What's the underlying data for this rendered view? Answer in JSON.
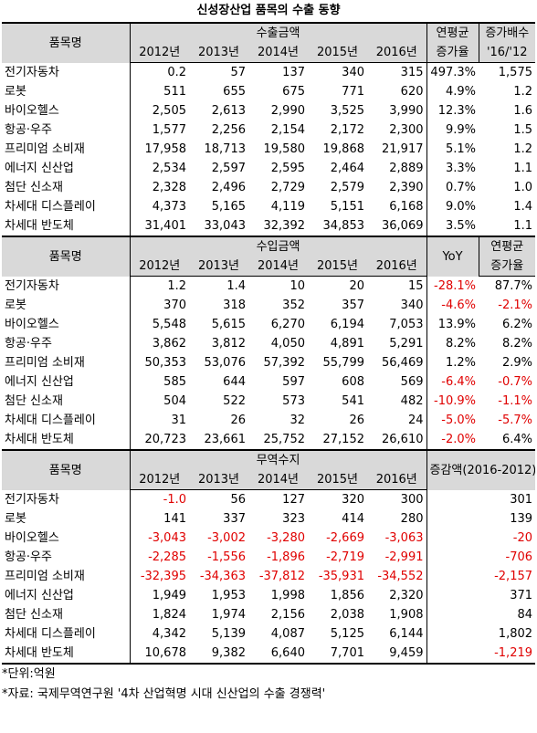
{
  "title": "신성장산업 품목의 수출 동향",
  "tables": [
    {
      "header": {
        "item": "품목명",
        "group": "수출금액",
        "years": [
          "2012년",
          "2013년",
          "2014년",
          "2015년",
          "2016년"
        ],
        "extra": [
          {
            "top": "연평균",
            "bottom": "증가율"
          },
          {
            "top": "증가배수",
            "bottom": "'16/'12"
          }
        ]
      },
      "rows": [
        [
          "전기자동차",
          "0.2",
          "57",
          "137",
          "340",
          "315",
          "497.3%",
          "1,575"
        ],
        [
          "로봇",
          "511",
          "655",
          "675",
          "771",
          "620",
          "4.9%",
          "1.2"
        ],
        [
          "바이오헬스",
          "2,505",
          "2,613",
          "2,990",
          "3,525",
          "3,990",
          "12.3%",
          "1.6"
        ],
        [
          "항공·우주",
          "1,577",
          "2,256",
          "2,154",
          "2,172",
          "2,300",
          "9.9%",
          "1.5"
        ],
        [
          "프리미엄 소비재",
          "17,958",
          "18,713",
          "19,580",
          "19,868",
          "21,917",
          "5.1%",
          "1.2"
        ],
        [
          "에너지 신산업",
          "2,534",
          "2,597",
          "2,595",
          "2,464",
          "2,889",
          "3.3%",
          "1.1"
        ],
        [
          "첨단 신소재",
          "2,328",
          "2,496",
          "2,729",
          "2,579",
          "2,390",
          "0.7%",
          "1.0"
        ],
        [
          "차세대 디스플레이",
          "4,373",
          "5,165",
          "4,119",
          "5,151",
          "6,168",
          "9.0%",
          "1.4"
        ],
        [
          "차세대 반도체",
          "31,401",
          "33,043",
          "32,392",
          "34,853",
          "36,069",
          "3.5%",
          "1.1"
        ]
      ]
    },
    {
      "header": {
        "item": "품목명",
        "group": "수입금액",
        "years": [
          "2012년",
          "2013년",
          "2014년",
          "2015년",
          "2016년"
        ],
        "extra": [
          "YoY",
          {
            "top": "연평균",
            "bottom": "증가율"
          }
        ]
      },
      "rows": [
        [
          "전기자동차",
          "1.2",
          "1.4",
          "10",
          "20",
          "15",
          "-28.1%",
          "87.7%"
        ],
        [
          "로봇",
          "370",
          "318",
          "352",
          "357",
          "340",
          "-4.6%",
          "-2.1%"
        ],
        [
          "바이오헬스",
          "5,548",
          "5,615",
          "6,270",
          "6,194",
          "7,053",
          "13.9%",
          "6.2%"
        ],
        [
          "항공·우주",
          "3,862",
          "3,812",
          "4,050",
          "4,891",
          "5,291",
          "8.2%",
          "8.2%"
        ],
        [
          "프리미엄 소비재",
          "50,353",
          "53,076",
          "57,392",
          "55,799",
          "56,469",
          "1.2%",
          "2.9%"
        ],
        [
          "에너지 신산업",
          "585",
          "644",
          "597",
          "608",
          "569",
          "-6.4%",
          "-0.7%"
        ],
        [
          "첨단 신소재",
          "504",
          "522",
          "573",
          "541",
          "482",
          "-10.9%",
          "-1.1%"
        ],
        [
          "차세대 디스플레이",
          "31",
          "26",
          "32",
          "26",
          "24",
          "-5.0%",
          "-5.7%"
        ],
        [
          "차세대 반도체",
          "20,723",
          "23,661",
          "25,752",
          "27,152",
          "26,610",
          "-2.0%",
          "6.4%"
        ]
      ]
    },
    {
      "header": {
        "item": "품목명",
        "group": "무역수지",
        "years": [
          "2012년",
          "2013년",
          "2014년",
          "2015년",
          "2016년"
        ],
        "extra": [
          "증감액(2016-2012)"
        ]
      },
      "rows": [
        [
          "전기자동차",
          "-1.0",
          "56",
          "127",
          "320",
          "300",
          "301"
        ],
        [
          "로봇",
          "141",
          "337",
          "323",
          "414",
          "280",
          "139"
        ],
        [
          "바이오헬스",
          "-3,043",
          "-3,002",
          "-3,280",
          "-2,669",
          "-3,063",
          "-20"
        ],
        [
          "항공·우주",
          "-2,285",
          "-1,556",
          "-1,896",
          "-2,719",
          "-2,991",
          "-706"
        ],
        [
          "프리미엄 소비재",
          "-32,395",
          "-34,363",
          "-37,812",
          "-35,931",
          "-34,552",
          "-2,157"
        ],
        [
          "에너지 신산업",
          "1,949",
          "1,953",
          "1,998",
          "1,856",
          "2,320",
          "371"
        ],
        [
          "첨단 신소재",
          "1,824",
          "1,974",
          "2,156",
          "2,038",
          "1,908",
          "84"
        ],
        [
          "차세대 디스플레이",
          "4,342",
          "5,139",
          "4,087",
          "5,125",
          "6,144",
          "1,802"
        ],
        [
          "차세대 반도체",
          "10,678",
          "9,382",
          "6,640",
          "7,701",
          "9,459",
          "-1,219"
        ]
      ]
    }
  ],
  "notes": [
    "*단위:억원",
    "*자료: 국제무역연구원 '4차 산업혁명 시대 신산업의 수출 경쟁력'"
  ]
}
